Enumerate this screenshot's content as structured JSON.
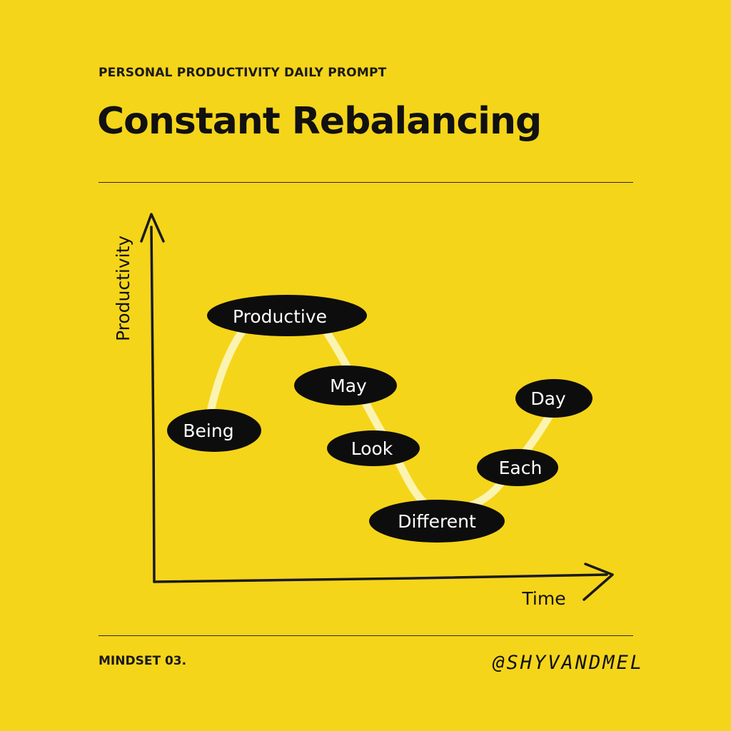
{
  "header": {
    "kicker": "PERSONAL PRODUCTIVITY DAILY PROMPT",
    "title": "Constant Rebalancing"
  },
  "diagram": {
    "y_axis_label": "Productivity",
    "x_axis_label": "Time",
    "words": [
      {
        "id": "being",
        "text": "Being"
      },
      {
        "id": "productive",
        "text": "Productive"
      },
      {
        "id": "may",
        "text": "May"
      },
      {
        "id": "look",
        "text": "Look"
      },
      {
        "id": "different",
        "text": "Different"
      },
      {
        "id": "each",
        "text": "Each"
      },
      {
        "id": "day",
        "text": "Day"
      }
    ]
  },
  "footer": {
    "series": "MINDSET 03.",
    "handle": "@SHYVANDMEL"
  },
  "colors": {
    "background": "#f5d51a",
    "pill": "#0d0d0d",
    "curve": "#fbf3b0",
    "ink": "#111111"
  }
}
